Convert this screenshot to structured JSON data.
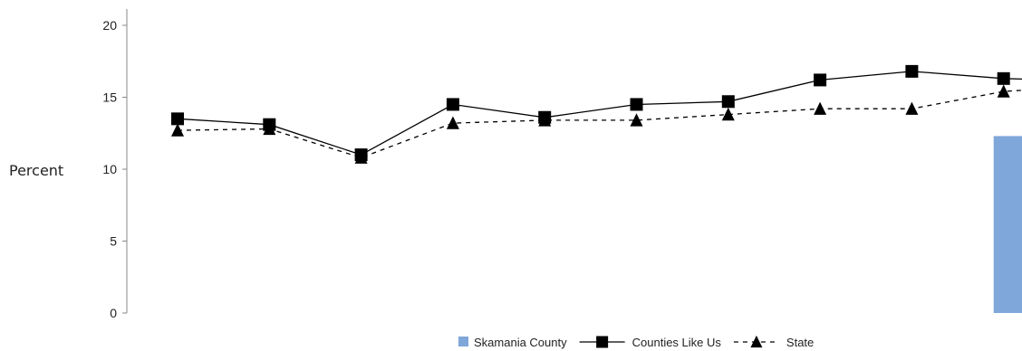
{
  "chart_data": {
    "type": "line",
    "title": "",
    "xlabel": "",
    "ylabel": "Percent",
    "ylim": [
      0,
      20
    ],
    "yticks": [
      0,
      5,
      10,
      15,
      20
    ],
    "grid": false,
    "legend_position": "bottom",
    "x": [
      1,
      2,
      3,
      4,
      5,
      6,
      7,
      8,
      9,
      10
    ],
    "series": [
      {
        "name": "Skamania County",
        "type": "bar",
        "color": "#7fa7d9",
        "values": [
          null,
          null,
          null,
          null,
          null,
          null,
          null,
          null,
          null,
          12.3
        ]
      },
      {
        "name": "Counties Like Us",
        "type": "line",
        "marker": "square",
        "line_style": "solid",
        "color": "#000000",
        "values": [
          13.5,
          13.1,
          11.0,
          14.5,
          13.6,
          14.5,
          14.7,
          16.2,
          16.8,
          16.3
        ]
      },
      {
        "name": "State",
        "type": "line",
        "marker": "triangle",
        "line_style": "dashed",
        "color": "#000000",
        "values": [
          12.7,
          12.8,
          10.8,
          13.2,
          13.4,
          13.4,
          13.8,
          14.2,
          14.2,
          15.4
        ]
      }
    ]
  }
}
